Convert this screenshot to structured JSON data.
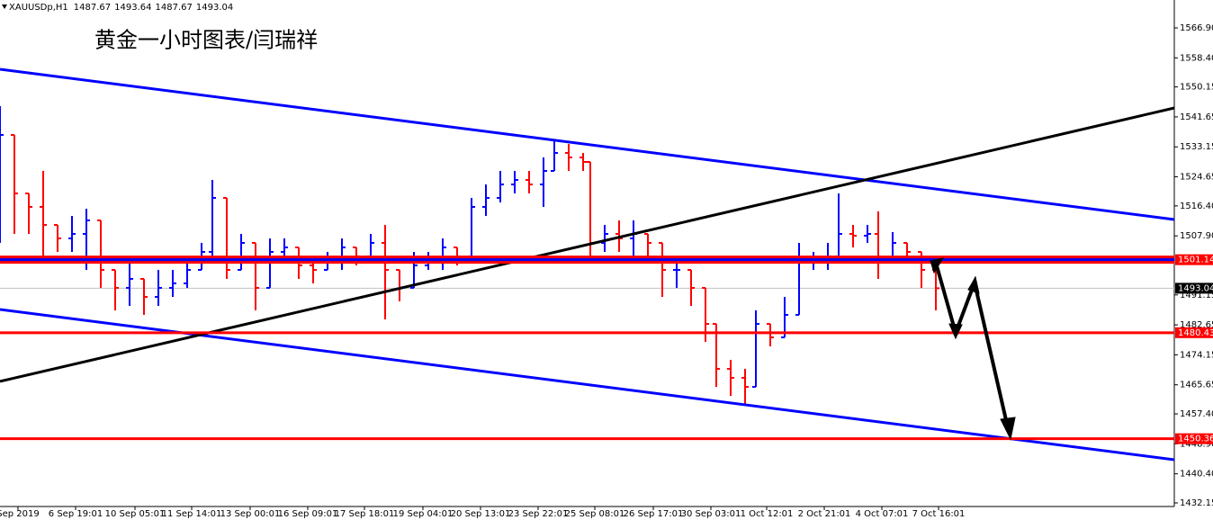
{
  "chart_data": {
    "type": "ohlc",
    "symbol": "XAUUSDp,H1",
    "header_values": [
      1487.67,
      1493.64,
      1487.67,
      1493.04
    ],
    "title": "黄金一小时图表/闫瑞祥",
    "up_color": "#0000ff",
    "down_color": "#ff0000",
    "x": [
      0,
      8,
      16,
      24,
      32,
      40,
      48,
      56,
      64,
      72,
      80,
      88,
      96,
      104,
      112,
      118,
      126,
      134,
      142,
      150,
      158,
      166,
      174,
      182,
      190,
      198,
      206,
      214,
      222,
      230,
      238,
      246,
      254,
      262,
      270,
      278,
      286,
      294,
      302,
      308,
      316,
      324,
      328,
      336,
      344,
      352,
      360,
      368,
      376,
      384,
      392,
      398,
      406,
      414,
      420,
      428,
      436,
      444,
      452,
      460,
      466,
      474,
      482,
      488,
      496,
      504,
      512,
      520
    ],
    "open": [
      1523.77,
      1536.53,
      1519.94,
      1516.11,
      1511.01,
      1507.18,
      1508.46,
      1512.29,
      1498.25,
      1493.15,
      1495.7,
      1490.59,
      1493.15,
      1494.42,
      1498.25,
      1503.35,
      1518.67,
      1498.25,
      1505.91,
      1493.15,
      1503.35,
      1504.63,
      1499.53,
      1498.25,
      1500.8,
      1504.63,
      1502.08,
      1505.91,
      1498.25,
      1493.15,
      1499.53,
      1500.8,
      1504.63,
      1502.08,
      1516.11,
      1518.67,
      1522.49,
      1523.77,
      1522.49,
      1526.32,
      1531.43,
      1530.15,
      1528.87,
      1505.91,
      1508.46,
      1507.18,
      1508.46,
      1505.91,
      1498.25,
      1498.25,
      1493.15,
      1482.94,
      1470.18,
      1467.63,
      1465.07,
      1482.94,
      1479.11,
      1485.49,
      1500.8,
      1500.8,
      1502.08,
      1508.46,
      1507.95,
      1508.46,
      1500.8,
      1505.91,
      1503.35,
      1498.25
    ],
    "high": [
      1544.7,
      1536.53,
      1519.94,
      1526.32,
      1511.01,
      1513.56,
      1515.6,
      1512.29,
      1498.25,
      1500.8,
      1495.7,
      1498.25,
      1498.25,
      1502.08,
      1505.91,
      1523.77,
      1518.67,
      1508.46,
      1505.91,
      1507.18,
      1507.18,
      1504.63,
      1502.08,
      1503.35,
      1507.18,
      1504.63,
      1508.46,
      1511.01,
      1498.25,
      1503.35,
      1503.35,
      1507.18,
      1504.63,
      1518.67,
      1522.49,
      1526.32,
      1526.32,
      1526.32,
      1530.15,
      1535.25,
      1533.98,
      1531.43,
      1528.87,
      1511.01,
      1512.29,
      1512.29,
      1508.46,
      1505.91,
      1502.08,
      1498.25,
      1493.15,
      1482.94,
      1472.73,
      1470.18,
      1486.77,
      1482.94,
      1490.59,
      1505.91,
      1503.35,
      1505.91,
      1519.94,
      1511.01,
      1511.01,
      1514.84,
      1508.97,
      1505.91,
      1503.35,
      1498.25
    ],
    "low": [
      1505.91,
      1508.46,
      1508.46,
      1500.8,
      1503.35,
      1503.35,
      1498.25,
      1493.15,
      1486.77,
      1488.04,
      1485.49,
      1488.04,
      1490.59,
      1493.15,
      1498.25,
      1500.8,
      1495.7,
      1498.25,
      1486.77,
      1493.15,
      1500.8,
      1495.7,
      1494.42,
      1498.25,
      1498.25,
      1499.53,
      1500.8,
      1484.21,
      1489.32,
      1493.15,
      1498.25,
      1498.25,
      1499.53,
      1502.08,
      1513.56,
      1517.39,
      1519.94,
      1519.94,
      1516.11,
      1526.32,
      1526.32,
      1526.32,
      1502.08,
      1503.35,
      1503.35,
      1502.08,
      1502.08,
      1490.59,
      1493.15,
      1488.04,
      1477.83,
      1465.07,
      1462.52,
      1459.97,
      1465.07,
      1476.56,
      1479.11,
      1485.49,
      1498.25,
      1498.25,
      1502.08,
      1504.63,
      1505.91,
      1495.7,
      1500.8,
      1500.8,
      1493.15,
      1486.77
    ],
    "close": [
      1536.53,
      1519.94,
      1516.11,
      1511.01,
      1507.18,
      1508.46,
      1512.29,
      1498.25,
      1493.15,
      1495.7,
      1490.59,
      1493.15,
      1494.42,
      1498.25,
      1503.35,
      1518.67,
      1498.25,
      1505.91,
      1493.15,
      1503.35,
      1504.63,
      1499.53,
      1498.25,
      1500.8,
      1504.63,
      1502.08,
      1505.91,
      1498.25,
      1493.15,
      1499.53,
      1500.8,
      1504.63,
      1502.08,
      1516.11,
      1518.67,
      1522.49,
      1523.77,
      1522.49,
      1526.32,
      1531.43,
      1530.15,
      1528.87,
      1505.91,
      1508.46,
      1507.18,
      1508.46,
      1505.91,
      1498.25,
      1498.25,
      1493.15,
      1482.94,
      1470.18,
      1467.63,
      1465.07,
      1482.94,
      1479.11,
      1485.49,
      1500.8,
      1500.8,
      1502.08,
      1508.46,
      1507.95,
      1508.46,
      1500.8,
      1505.91,
      1503.35,
      1498.25,
      1493.04
    ],
    "xlim": [
      0,
      652.5
    ],
    "xticks": [
      {
        "value": 10,
        "label": "Sep 2019"
      },
      {
        "value": 42,
        "label": "6 Sep 19:01"
      },
      {
        "value": 75,
        "label": "10 Sep 05:01"
      },
      {
        "value": 106.5,
        "label": "11 Sep 14:01"
      },
      {
        "value": 139,
        "label": "13 Sep 00:01"
      },
      {
        "value": 171,
        "label": "16 Sep 09:01"
      },
      {
        "value": 202.5,
        "label": "17 Sep 18:01"
      },
      {
        "value": 235,
        "label": "19 Sep 04:01"
      },
      {
        "value": 267,
        "label": "20 Sep 13:01"
      },
      {
        "value": 299,
        "label": "23 Sep 22:01"
      },
      {
        "value": 330.5,
        "label": "25 Sep 08:01"
      },
      {
        "value": 363,
        "label": "26 Sep 17:01"
      },
      {
        "value": 395,
        "label": "30 Sep 03:01"
      },
      {
        "value": 426,
        "label": "1 Oct 12:01"
      },
      {
        "value": 458,
        "label": "2 Oct 21:01"
      },
      {
        "value": 490,
        "label": "4 Oct 07:01"
      },
      {
        "value": 521.5,
        "label": "7 Oct 16:01"
      }
    ],
    "ylim": [
      1427.3,
      1574.81
    ],
    "yticks": [
      {
        "value": 1566.9,
        "label": "1566.90"
      },
      {
        "value": 1558.4,
        "label": "1558.40"
      },
      1550.15,
      1541.65,
      1533.15,
      1524.65,
      {
        "value": 1516.4,
        "label": "1516.40"
      },
      {
        "value": 1507.9,
        "label": "1507.90"
      },
      1491.15,
      1482.65,
      1474.15,
      1465.65,
      {
        "value": 1457.4,
        "label": "1457.40"
      },
      {
        "value": 1448.9,
        "label": "1448.90"
      },
      {
        "value": 1440.4,
        "label": "1440.40"
      },
      1432.15
    ],
    "levels": [
      {
        "value": 1501.14,
        "color": "#ff0000",
        "inner_color": "#0000ff"
      },
      {
        "value": 1480.43,
        "color": "#ff0000"
      },
      {
        "value": 1450.36,
        "color": "#ff0000"
      }
    ],
    "current_price": 1493.04,
    "trend_lines": [
      {
        "color": "#0000ff",
        "start": [
          0,
          1555.16
        ],
        "end": [
          652.5,
          1512.54
        ]
      },
      {
        "color": "#0000ff",
        "start": [
          0,
          1487.02
        ],
        "end": [
          652.5,
          1444.4
        ]
      },
      {
        "color": "#000000",
        "start": [
          0,
          1466.61
        ],
        "end": [
          652.5,
          1544.19
        ]
      }
    ]
  }
}
